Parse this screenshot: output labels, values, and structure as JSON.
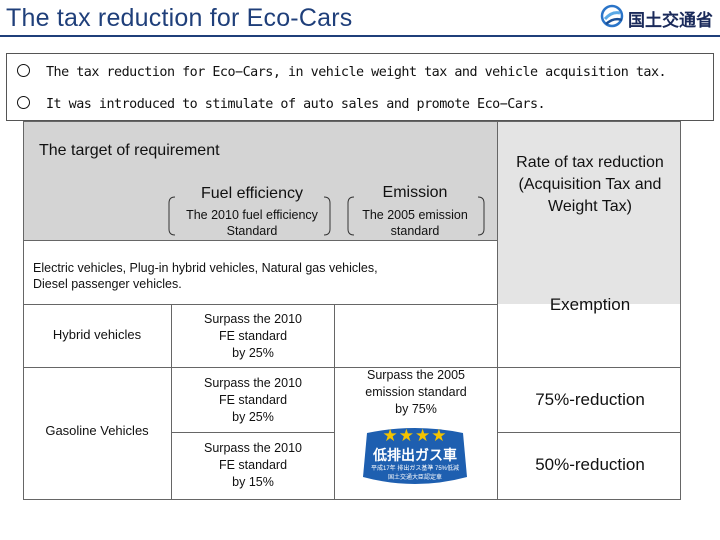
{
  "slide": {
    "title": "The tax reduction for Eco-Cars",
    "logo_text": "国土交通省"
  },
  "bullets": [
    "The tax reduction for Eco−Cars, in vehicle weight tax and vehicle acquisition tax.",
    "It was introduced to stimulate of auto sales and promote Eco−Cars."
  ],
  "table": {
    "target_header": "The target of requirement",
    "fuel_header": "Fuel efficiency",
    "fuel_standard": [
      "The 2010 fuel efficiency",
      "Standard"
    ],
    "emission_header": "Emission",
    "emission_standard": [
      "The 2005 emission",
      "standard"
    ],
    "rate_header": [
      "Rate of tax reduction",
      "(Acquisition Tax and",
      "Weight Tax)"
    ],
    "electric_row": [
      "Electric vehicles, Plug-in hybrid vehicles, Natural gas vehicles,",
      "Diesel  passenger  vehicles."
    ],
    "exemption": "Exemption",
    "hybrid_label": "Hybrid  vehicles",
    "gasoline_label": "Gasoline Vehicles",
    "hybrid_fe": [
      "Surpass the 2010",
      "FE standard",
      "by 25%"
    ],
    "gas_fe_1": [
      "Surpass the 2010",
      "FE standard",
      "by 25%"
    ],
    "gas_fe_2": [
      "Surpass the 2010",
      "FE standard",
      "by 15%"
    ],
    "emission_req": [
      "Surpass the 2005",
      "emission standard",
      "by 75%"
    ],
    "reduction_75": "75%-reduction",
    "reduction_50": "50%-reduction"
  },
  "badge": {
    "stars": "★★★★",
    "main_text": "低排出ガス車",
    "sub_text": "平成17年 排出ガス基準 75%低減",
    "bottom_text": "国土交通大臣認定車",
    "colors": {
      "background": "#1e5fb0",
      "stars": "#f3c300",
      "text": "#ffffff"
    }
  },
  "colors": {
    "title": "#1f3f7a",
    "header_fill": "#d4d4d4",
    "rate_fill": "#e4e4e4",
    "border": "#666666"
  }
}
